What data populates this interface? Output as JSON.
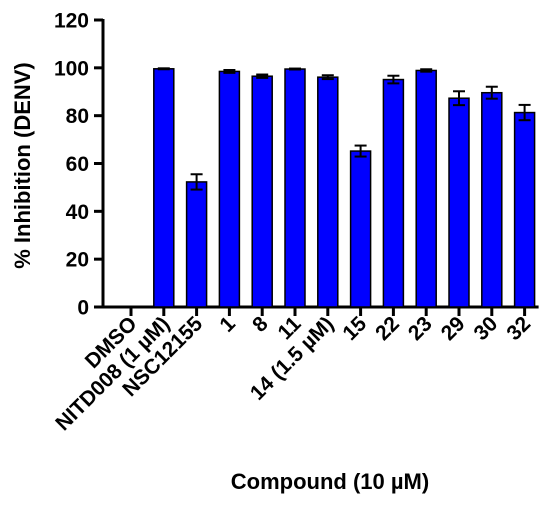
{
  "chart_data": {
    "type": "bar",
    "categories": [
      "DMSO",
      "NITD008 (1 µM)",
      "NSC12155",
      "1",
      "8",
      "11",
      "14 (1.5 µM)",
      "15",
      "22",
      "23",
      "29",
      "30",
      "32"
    ],
    "values": [
      0,
      99.6,
      52.3,
      98.5,
      96.5,
      99.5,
      96.1,
      65.2,
      95.1,
      98.9,
      87.3,
      89.6,
      81.3
    ],
    "errors": [
      0,
      0.2,
      3.2,
      0.6,
      0.7,
      0.2,
      0.8,
      2.3,
      1.6,
      0.5,
      2.9,
      2.5,
      3.2
    ],
    "title": "",
    "xlabel": "Compound (10 µM)",
    "ylabel": "% Inhibition (DENV)",
    "ylim": [
      0,
      120
    ],
    "yticks": [
      0,
      20,
      40,
      60,
      80,
      100,
      120
    ],
    "bar_color": "#0000ff",
    "edge_color": "#000000",
    "grid": false,
    "legend": "none"
  }
}
